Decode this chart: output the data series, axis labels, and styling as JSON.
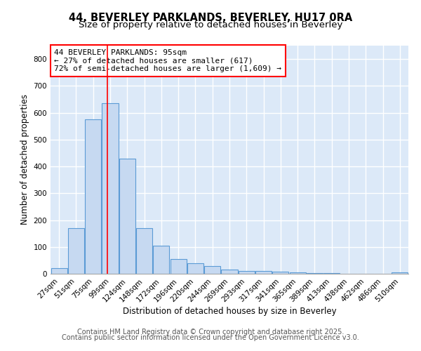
{
  "title1": "44, BEVERLEY PARKLANDS, BEVERLEY, HU17 0RA",
  "title2": "Size of property relative to detached houses in Beverley",
  "xlabel": "Distribution of detached houses by size in Beverley",
  "ylabel": "Number of detached properties",
  "categories": [
    "27sqm",
    "51sqm",
    "75sqm",
    "99sqm",
    "124sqm",
    "148sqm",
    "172sqm",
    "196sqm",
    "220sqm",
    "244sqm",
    "269sqm",
    "293sqm",
    "317sqm",
    "341sqm",
    "365sqm",
    "389sqm",
    "413sqm",
    "438sqm",
    "462sqm",
    "486sqm",
    "510sqm"
  ],
  "values": [
    20,
    170,
    575,
    635,
    430,
    170,
    105,
    55,
    40,
    30,
    15,
    10,
    10,
    8,
    5,
    3,
    2,
    1,
    0,
    0,
    5
  ],
  "bar_color": "#c6d9f1",
  "bar_edge_color": "#5b9bd5",
  "red_line_x": 2.83,
  "annotation_text": "44 BEVERLEY PARKLANDS: 95sqm\n← 27% of detached houses are smaller (617)\n72% of semi-detached houses are larger (1,609) →",
  "annotation_box_color": "white",
  "annotation_box_edge": "red",
  "ylim": [
    0,
    850
  ],
  "yticks": [
    0,
    100,
    200,
    300,
    400,
    500,
    600,
    700,
    800
  ],
  "footer1": "Contains HM Land Registry data © Crown copyright and database right 2025.",
  "footer2": "Contains public sector information licensed under the Open Government Licence v3.0.",
  "bg_color": "#dce9f8",
  "grid_color": "white",
  "title_fontsize": 10.5,
  "subtitle_fontsize": 9.5,
  "axis_label_fontsize": 8.5,
  "tick_fontsize": 7.5,
  "footer_fontsize": 7.0,
  "annotation_fontsize": 8.0
}
